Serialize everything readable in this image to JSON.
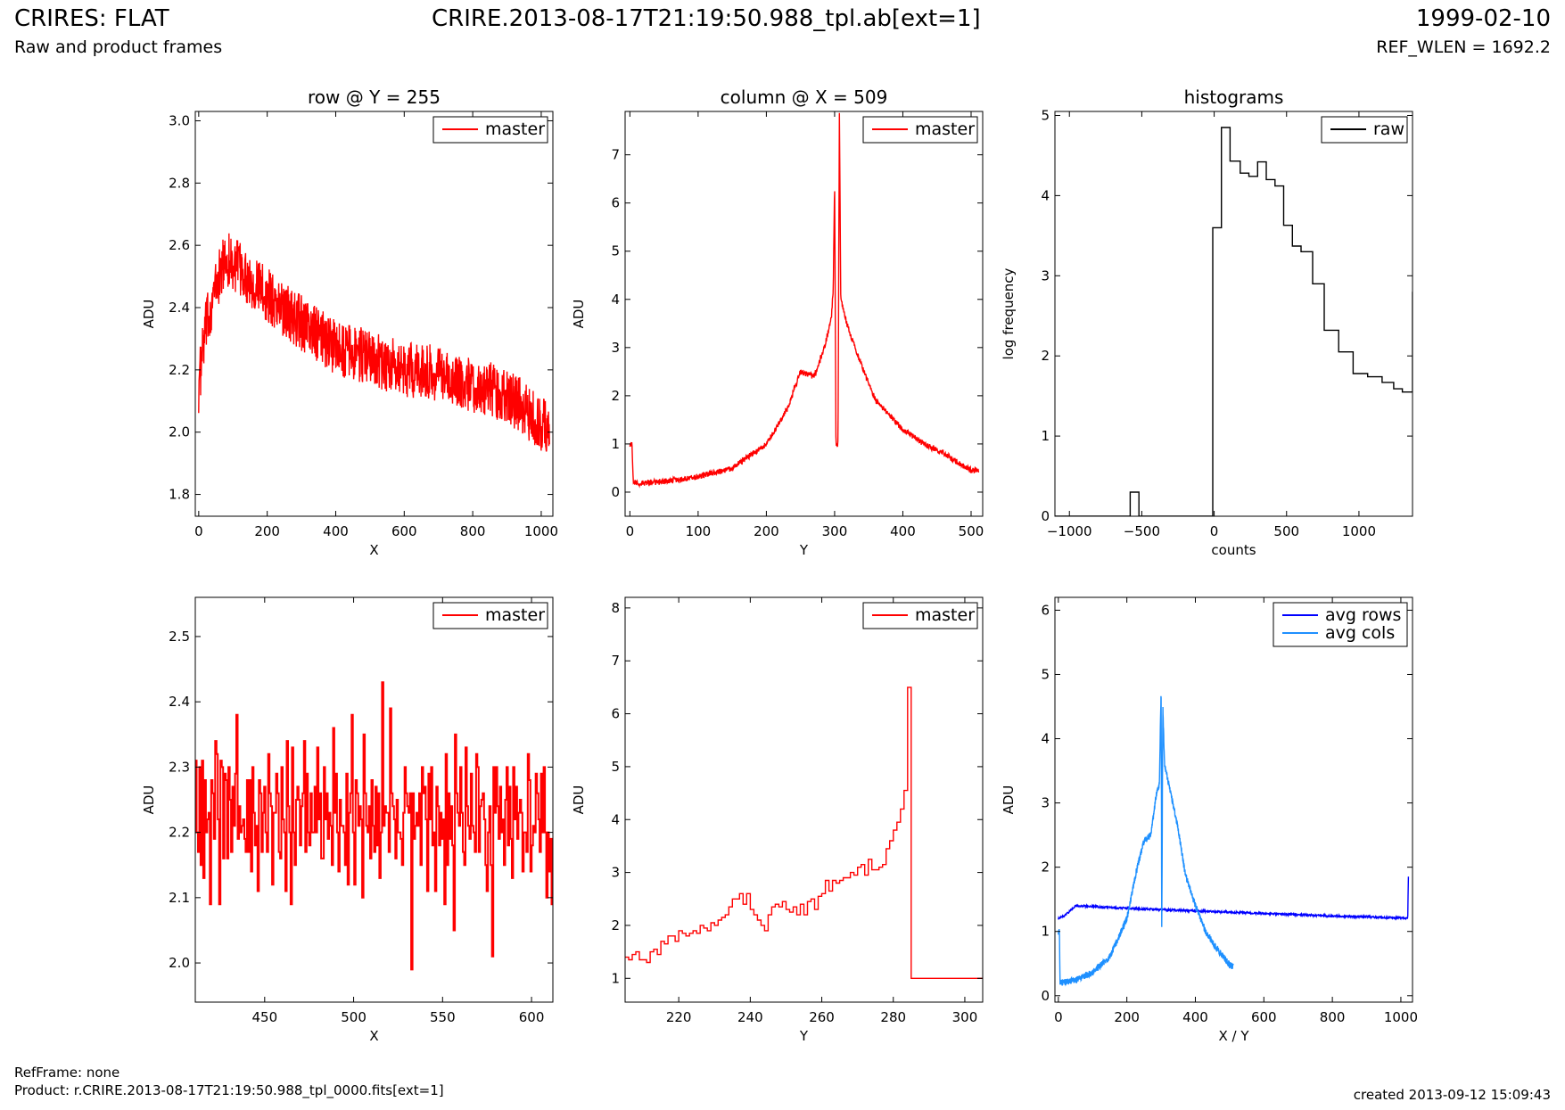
{
  "header": {
    "title": "CRIRES: FLAT",
    "subtitle": "Raw and product frames",
    "filename": "CRIRE.2013-08-17T21:19:50.988_tpl.ab[ext=1]",
    "date": "1999-02-10",
    "ref_wlen": "REF_WLEN = 1692.2"
  },
  "footer": {
    "ref_frame": "RefFrame: none",
    "product": "Product: r.CRIRE.2013-08-17T21:19:50.988_tpl_0000.fits[ext=1]",
    "created": "created 2013-09-12 15:09:43"
  },
  "colors": {
    "master": "#ff0000",
    "raw": "#000000",
    "avg_rows": "#0000ff",
    "avg_cols": "#1e90ff"
  },
  "chart_data": [
    {
      "type": "line",
      "title": "row @ Y = 255",
      "xlabel": "X",
      "ylabel": "ADU",
      "xlim": [
        -10,
        1034
      ],
      "ylim": [
        1.73,
        3.03
      ],
      "xticks": [
        "0",
        "200",
        "400",
        "600",
        "800",
        "1000"
      ],
      "yticks": [
        "1.8",
        "2.0",
        "2.2",
        "2.4",
        "2.6",
        "2.8",
        "3.0"
      ],
      "legend": "upper right",
      "series": [
        {
          "name": "master",
          "trend": [
            [
              0,
              2.15
            ],
            [
              20,
              2.33
            ],
            [
              50,
              2.47
            ],
            [
              80,
              2.56
            ],
            [
              120,
              2.52
            ],
            [
              200,
              2.44
            ],
            [
              300,
              2.35
            ],
            [
              400,
              2.27
            ],
            [
              500,
              2.24
            ],
            [
              600,
              2.2
            ],
            [
              700,
              2.19
            ],
            [
              800,
              2.15
            ],
            [
              900,
              2.12
            ],
            [
              1000,
              2.03
            ],
            [
              1024,
              2.0
            ]
          ],
          "noise": 0.09
        }
      ]
    },
    {
      "type": "line",
      "title": "column @ X = 509",
      "xlabel": "Y",
      "ylabel": "ADU",
      "xlim": [
        -7,
        517
      ],
      "ylim": [
        -0.5,
        7.9
      ],
      "xticks": [
        "0",
        "100",
        "200",
        "300",
        "400",
        "500"
      ],
      "yticks": [
        "0",
        "1",
        "2",
        "3",
        "4",
        "5",
        "6",
        "7"
      ],
      "legend": "upper right",
      "series": [
        {
          "name": "master",
          "trend": [
            [
              0,
              1.0
            ],
            [
              3,
              1.0
            ],
            [
              5,
              0.18
            ],
            [
              50,
              0.22
            ],
            [
              100,
              0.32
            ],
            [
              150,
              0.5
            ],
            [
              200,
              1.0
            ],
            [
              230,
              1.7
            ],
            [
              250,
              2.5
            ],
            [
              270,
              2.4
            ],
            [
              285,
              3.0
            ],
            [
              295,
              3.6
            ],
            [
              298,
              4.2
            ],
            [
              300,
              6.5
            ],
            [
              302,
              1.0
            ],
            [
              305,
              1.0
            ],
            [
              307,
              8.0
            ],
            [
              309,
              4.0
            ],
            [
              320,
              3.4
            ],
            [
              340,
              2.6
            ],
            [
              360,
              1.9
            ],
            [
              380,
              1.6
            ],
            [
              400,
              1.3
            ],
            [
              430,
              1.0
            ],
            [
              460,
              0.8
            ],
            [
              500,
              0.45
            ],
            [
              511,
              0.45
            ]
          ],
          "noise": 0.06
        }
      ]
    },
    {
      "type": "line",
      "title": "histograms",
      "xlabel": "counts",
      "ylabel": "log frequency",
      "xlim": [
        -1100,
        1370
      ],
      "ylim": [
        0,
        5.05
      ],
      "xticks": [
        "-1000",
        "-500",
        "0",
        "500",
        "1000"
      ],
      "yticks": [
        "0",
        "1",
        "2",
        "3",
        "4",
        "5"
      ],
      "legend": "upper right",
      "series": [
        {
          "name": "raw",
          "step": true,
          "edges": [
            -1100,
            -580,
            -520,
            -80,
            -10,
            50,
            110,
            180,
            240,
            300,
            360,
            420,
            480,
            540,
            600,
            680,
            760,
            860,
            960,
            1060,
            1160,
            1240,
            1300,
            1370
          ],
          "values": [
            0,
            0.3,
            0,
            0,
            3.6,
            4.85,
            4.43,
            4.28,
            4.24,
            4.42,
            4.2,
            4.12,
            3.63,
            3.37,
            3.3,
            2.9,
            2.32,
            2.05,
            1.78,
            1.74,
            1.67,
            1.59,
            1.55,
            2.8
          ]
        }
      ]
    },
    {
      "type": "line",
      "title": "",
      "xlabel": "X",
      "ylabel": "ADU",
      "xlim": [
        411,
        612
      ],
      "ylim": [
        1.94,
        2.56
      ],
      "xticks": [
        "450",
        "500",
        "550",
        "600"
      ],
      "yticks": [
        "2.0",
        "2.1",
        "2.2",
        "2.3",
        "2.4",
        "2.5"
      ],
      "legend": "upper right",
      "series": [
        {
          "name": "master",
          "step": true,
          "values": [
            2.31,
            2.2,
            2.17,
            2.3,
            2.15,
            2.31,
            2.13,
            2.28,
            2.2,
            2.22,
            2.23,
            2.09,
            2.28,
            2.26,
            2.19,
            2.34,
            2.32,
            2.22,
            2.09,
            2.31,
            2.3,
            2.16,
            2.29,
            2.28,
            2.16,
            2.3,
            2.25,
            2.17,
            2.27,
            2.21,
            2.29,
            2.38,
            2.19,
            2.24,
            2.2,
            2.21,
            2.22,
            2.19,
            2.17,
            2.28,
            2.17,
            2.28,
            2.14,
            2.3,
            2.23,
            2.18,
            2.21,
            2.11,
            2.28,
            2.26,
            2.17,
            2.23,
            2.27,
            2.2,
            2.17,
            2.32,
            2.26,
            2.24,
            2.12,
            2.23,
            2.23,
            2.29,
            2.26,
            2.17,
            2.16,
            2.3,
            2.22,
            2.2,
            2.11,
            2.34,
            2.24,
            2.2,
            2.09,
            2.33,
            2.2,
            2.15,
            2.25,
            2.27,
            2.25,
            2.18,
            2.24,
            2.26,
            2.34,
            2.17,
            2.29,
            2.2,
            2.18,
            2.26,
            2.2,
            2.2,
            2.27,
            2.2,
            2.33,
            2.22,
            2.26,
            2.16,
            2.16,
            2.3,
            2.22,
            2.26,
            2.19,
            2.23,
            2.21,
            2.15,
            2.36,
            2.23,
            2.29,
            2.2,
            2.14,
            2.25,
            2.21,
            2.21,
            2.2,
            2.15,
            2.29,
            2.12,
            2.23,
            2.26,
            2.38,
            2.2,
            2.12,
            2.28,
            2.26,
            2.21,
            2.24,
            2.22,
            2.1,
            2.35,
            2.26,
            2.21,
            2.2,
            2.24,
            2.16,
            2.28,
            2.21,
            2.17,
            2.27,
            2.18,
            2.26,
            2.13,
            2.2,
            2.43,
            2.21,
            2.24,
            2.23,
            2.23,
            2.17,
            2.39,
            2.26,
            2.24,
            2.22,
            2.16,
            2.25,
            2.2,
            2.2,
            2.19,
            2.15,
            2.23,
            2.3,
            2.26,
            2.24,
            2.23,
            2.26,
            1.99,
            2.26,
            2.19,
            2.21,
            2.23,
            2.21,
            2.26,
            2.15,
            2.3,
            2.26,
            2.27,
            2.22,
            2.11,
            2.29,
            2.22,
            2.3,
            2.18,
            2.2,
            2.11,
            2.27,
            2.24,
            2.18,
            2.23,
            2.19,
            2.22,
            2.09,
            2.32,
            2.15,
            2.26,
            2.19,
            2.24,
            2.18,
            2.05,
            2.35,
            2.26,
            2.23,
            2.21,
            2.3,
            2.23,
            2.17,
            2.15,
            2.33,
            2.24,
            2.21,
            2.19,
            2.29,
            2.21,
            2.2,
            2.17,
            2.32,
            2.3,
            2.17,
            2.24,
            2.25,
            2.26,
            2.22,
            2.15,
            2.11,
            2.2,
            2.24,
            2.15,
            2.01,
            2.3,
            2.23,
            2.3,
            2.24,
            2.19,
            2.27,
            2.2,
            2.22,
            2.15,
            2.25,
            2.3,
            2.18,
            2.27,
            2.19,
            2.13,
            2.3,
            2.22,
            2.27,
            2.19,
            2.23,
            2.25,
            2.23,
            2.14,
            2.2,
            2.2,
            2.17,
            2.32,
            2.28,
            2.14,
            2.18,
            2.21,
            2.2,
            2.29,
            2.26,
            2.22,
            2.17,
            2.29,
            2.2,
            2.3,
            2.2,
            2.1,
            2.2,
            2.14,
            2.19,
            2.09
          ]
        }
      ]
    },
    {
      "type": "line",
      "title": "",
      "xlabel": "Y",
      "ylabel": "ADU",
      "xlim": [
        205,
        305
      ],
      "ylim": [
        0.55,
        8.2
      ],
      "xticks": [
        "220",
        "240",
        "260",
        "280",
        "300"
      ],
      "yticks": [
        "1",
        "2",
        "3",
        "4",
        "5",
        "6",
        "7",
        "8"
      ],
      "legend": "upper right",
      "series": [
        {
          "name": "master",
          "step": true,
          "x0": 205,
          "values": [
            1.4,
            1.35,
            1.45,
            1.5,
            1.35,
            1.35,
            1.3,
            1.5,
            1.55,
            1.45,
            1.7,
            1.65,
            1.8,
            1.8,
            1.7,
            1.9,
            1.85,
            1.8,
            1.85,
            1.9,
            1.85,
            2.0,
            1.95,
            1.9,
            2.05,
            2.0,
            2.1,
            2.15,
            2.2,
            2.35,
            2.5,
            2.5,
            2.6,
            2.4,
            2.6,
            2.3,
            2.2,
            2.1,
            2.0,
            1.9,
            2.2,
            2.35,
            2.4,
            2.35,
            2.45,
            2.3,
            2.25,
            2.35,
            2.2,
            2.4,
            2.2,
            2.45,
            2.5,
            2.3,
            2.55,
            2.6,
            2.85,
            2.65,
            2.85,
            2.8,
            2.85,
            2.9,
            2.9,
            3.0,
            2.95,
            3.1,
            3.15,
            2.95,
            3.25,
            3.05,
            3.05,
            3.1,
            3.15,
            3.45,
            3.6,
            3.8,
            3.95,
            4.2,
            4.55,
            6.5,
            1.0,
            1.0,
            1.0,
            1.0,
            1.0,
            1.0,
            1.0,
            1.0,
            1.0,
            1.0,
            1.0,
            1.0,
            1.0,
            1.0,
            1.0,
            1.0,
            1.0,
            1.0,
            1.0,
            1.0
          ]
        }
      ]
    },
    {
      "type": "line",
      "title": "",
      "xlabel": "X / Y",
      "ylabel": "ADU",
      "xlim": [
        -10,
        1034
      ],
      "ylim": [
        -0.1,
        6.2
      ],
      "xticks": [
        "0",
        "200",
        "400",
        "600",
        "800",
        "1000"
      ],
      "yticks": [
        "0",
        "1",
        "2",
        "3",
        "4",
        "5",
        "6"
      ],
      "legend": "upper right",
      "series": [
        {
          "name": "avg rows",
          "trend": [
            [
              0,
              1.2
            ],
            [
              20,
              1.25
            ],
            [
              50,
              1.4
            ],
            [
              100,
              1.39
            ],
            [
              200,
              1.36
            ],
            [
              400,
              1.32
            ],
            [
              600,
              1.28
            ],
            [
              800,
              1.24
            ],
            [
              1000,
              1.21
            ],
            [
              1020,
              1.21
            ],
            [
              1022,
              1.85
            ]
          ],
          "noise": 0.015
        },
        {
          "name": "avg cols",
          "trend": [
            [
              0,
              1.0
            ],
            [
              3,
              1.0
            ],
            [
              5,
              0.2
            ],
            [
              50,
              0.24
            ],
            [
              100,
              0.36
            ],
            [
              150,
              0.6
            ],
            [
              200,
              1.2
            ],
            [
              230,
              2.0
            ],
            [
              250,
              2.4
            ],
            [
              270,
              2.5
            ],
            [
              285,
              3.1
            ],
            [
              295,
              3.3
            ],
            [
              300,
              4.8
            ],
            [
              302,
              1.0
            ],
            [
              305,
              4.5
            ],
            [
              310,
              3.6
            ],
            [
              330,
              3.1
            ],
            [
              350,
              2.6
            ],
            [
              370,
              1.9
            ],
            [
              400,
              1.4
            ],
            [
              430,
              1.0
            ],
            [
              460,
              0.75
            ],
            [
              500,
              0.48
            ],
            [
              511,
              0.45
            ]
          ],
          "noise": 0.05
        }
      ]
    }
  ]
}
